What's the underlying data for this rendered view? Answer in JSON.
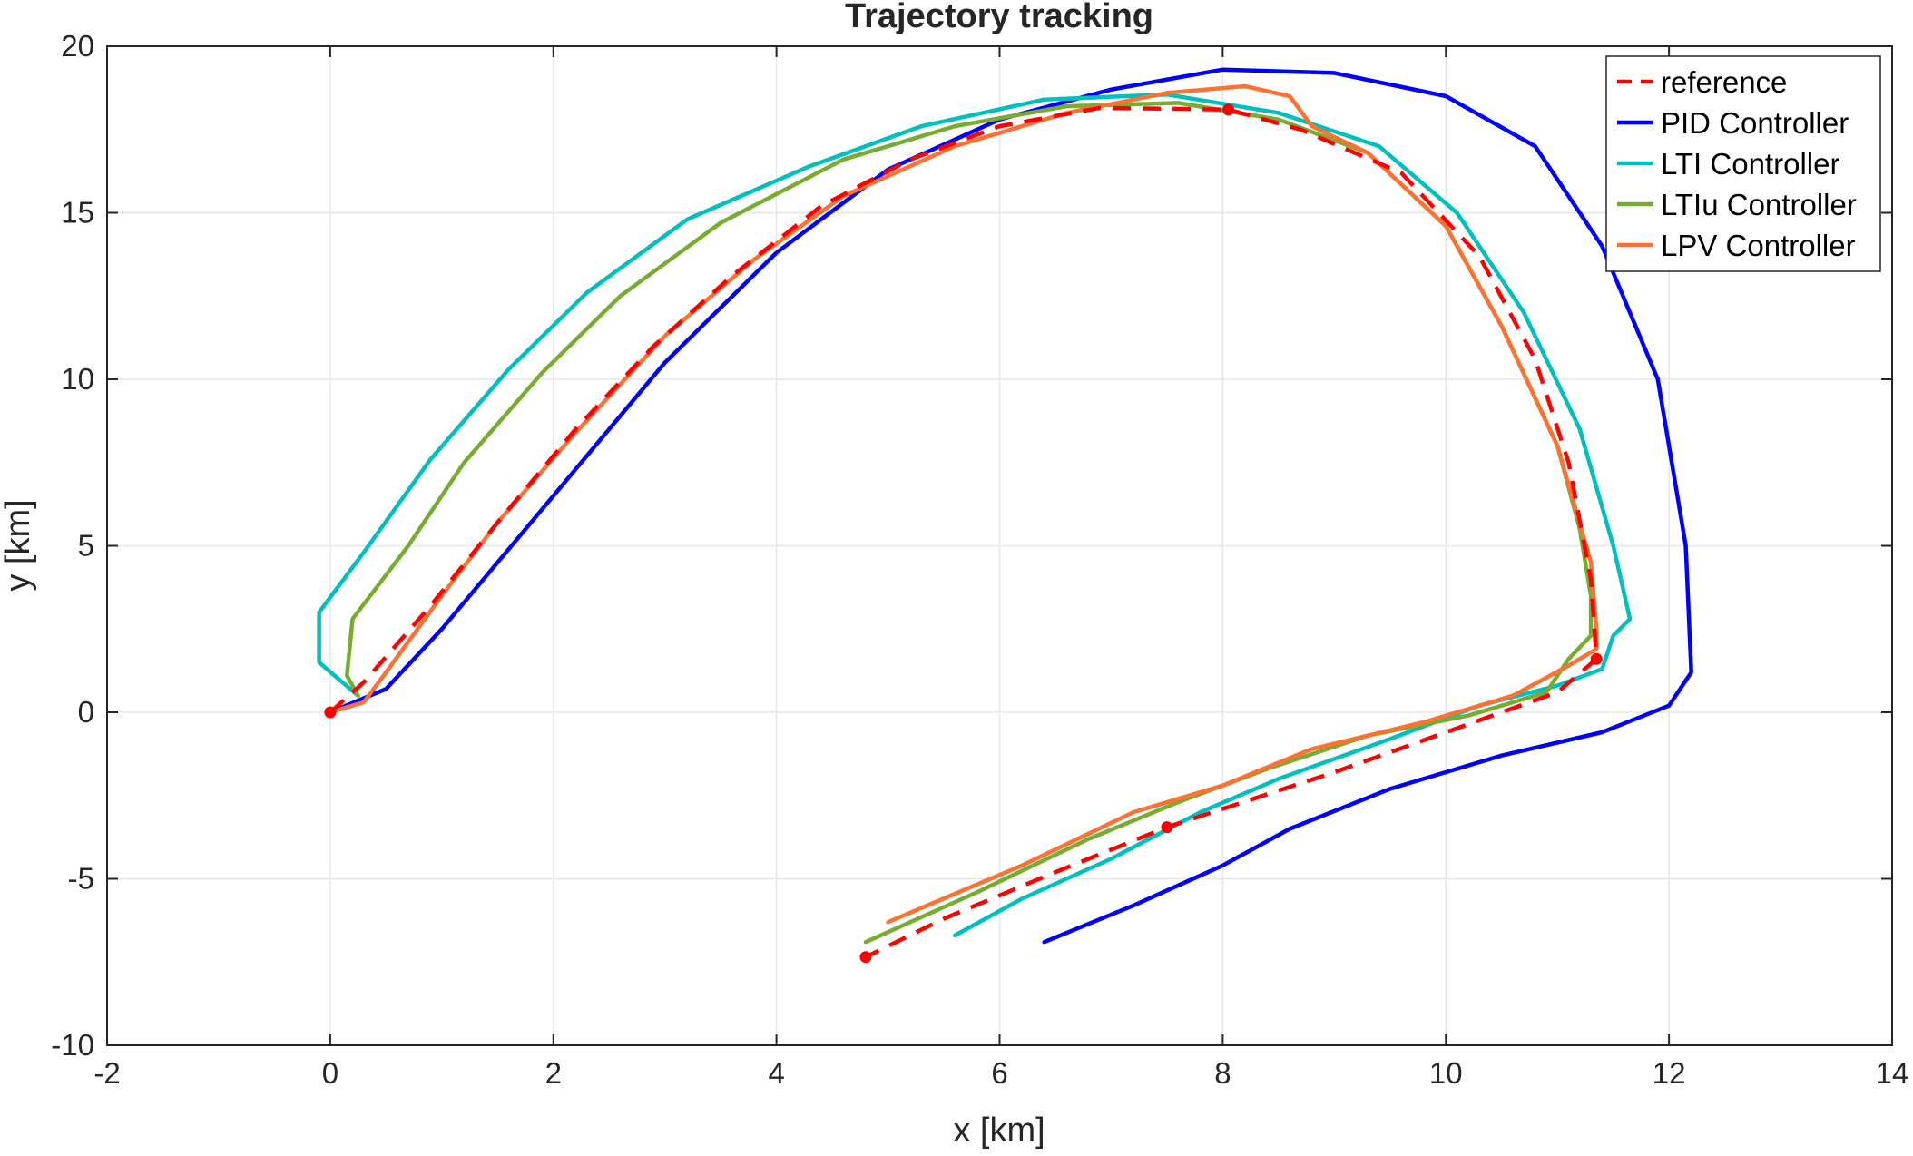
{
  "chart_data": {
    "type": "line",
    "title": "Trajectory tracking",
    "xlabel": "x [km]",
    "ylabel": "y [km]",
    "xlim": [
      -2,
      14
    ],
    "ylim": [
      -10,
      20
    ],
    "xticks": [
      -2,
      0,
      2,
      4,
      6,
      8,
      10,
      12,
      14
    ],
    "yticks": [
      -10,
      -5,
      0,
      5,
      10,
      15,
      20
    ],
    "grid": true,
    "legend_position": "top-right",
    "series": [
      {
        "name": "reference",
        "color": "#ff0000",
        "style": "dashed",
        "points": [
          [
            0,
            0
          ],
          [
            0.3,
            0.9
          ],
          [
            0.9,
            3.2
          ],
          [
            1.5,
            5.7
          ],
          [
            2.2,
            8.5
          ],
          [
            2.9,
            11
          ],
          [
            3.6,
            13.1
          ],
          [
            4.4,
            15.2
          ],
          [
            5.2,
            16.6
          ],
          [
            6.0,
            17.6
          ],
          [
            6.9,
            18.15
          ],
          [
            8.05,
            18.1
          ],
          [
            8.7,
            17.5
          ],
          [
            9.6,
            16.2
          ],
          [
            10.3,
            13.7
          ],
          [
            10.8,
            10.6
          ],
          [
            11.1,
            7.5
          ],
          [
            11.3,
            4.0
          ],
          [
            11.35,
            1.6
          ],
          [
            11.0,
            0.6
          ],
          [
            10.0,
            -0.6
          ],
          [
            9.0,
            -1.8
          ],
          [
            8.0,
            -2.9
          ],
          [
            7.5,
            -3.45
          ],
          [
            6.5,
            -4.8
          ],
          [
            5.5,
            -6.2
          ],
          [
            4.8,
            -7.35
          ]
        ]
      },
      {
        "name": "PID Controller",
        "color": "#0000ff",
        "style": "solid",
        "points": [
          [
            0,
            0
          ],
          [
            0.5,
            0.7
          ],
          [
            1.0,
            2.5
          ],
          [
            2.0,
            6.5
          ],
          [
            3.0,
            10.5
          ],
          [
            4.0,
            13.8
          ],
          [
            5.0,
            16.3
          ],
          [
            6.0,
            17.8
          ],
          [
            7.0,
            18.7
          ],
          [
            8.0,
            19.3
          ],
          [
            9.0,
            19.2
          ],
          [
            10.0,
            18.5
          ],
          [
            10.8,
            17.0
          ],
          [
            11.4,
            14.0
          ],
          [
            11.9,
            10.0
          ],
          [
            12.15,
            5.0
          ],
          [
            12.2,
            1.2
          ],
          [
            12.0,
            0.2
          ],
          [
            11.4,
            -0.6
          ],
          [
            10.5,
            -1.3
          ],
          [
            9.5,
            -2.3
          ],
          [
            8.6,
            -3.5
          ],
          [
            8.0,
            -4.6
          ],
          [
            7.2,
            -5.8
          ],
          [
            6.4,
            -6.9
          ]
        ]
      },
      {
        "name": "LTI Controller",
        "color": "#00bfbf",
        "style": "solid",
        "points": [
          [
            0.25,
            0.5
          ],
          [
            -0.1,
            1.5
          ],
          [
            -0.1,
            3.0
          ],
          [
            0.3,
            4.8
          ],
          [
            0.9,
            7.6
          ],
          [
            1.6,
            10.3
          ],
          [
            2.3,
            12.6
          ],
          [
            3.2,
            14.8
          ],
          [
            4.3,
            16.4
          ],
          [
            5.3,
            17.6
          ],
          [
            6.4,
            18.4
          ],
          [
            7.5,
            18.55
          ],
          [
            8.5,
            18.0
          ],
          [
            9.4,
            17.0
          ],
          [
            10.1,
            15.0
          ],
          [
            10.7,
            12.0
          ],
          [
            11.2,
            8.5
          ],
          [
            11.5,
            5.0
          ],
          [
            11.65,
            2.8
          ],
          [
            11.5,
            2.3
          ],
          [
            11.4,
            1.3
          ],
          [
            11.0,
            0.8
          ],
          [
            10.3,
            0.2
          ],
          [
            9.5,
            -0.8
          ],
          [
            8.5,
            -2.0
          ],
          [
            7.8,
            -3.0
          ],
          [
            7.0,
            -4.4
          ],
          [
            6.2,
            -5.6
          ],
          [
            5.6,
            -6.7
          ]
        ]
      },
      {
        "name": "LTIu Controller",
        "color": "#77ac30",
        "style": "solid",
        "points": [
          [
            0.25,
            0.5
          ],
          [
            0.15,
            1.1
          ],
          [
            0.2,
            2.8
          ],
          [
            0.7,
            5.0
          ],
          [
            1.2,
            7.5
          ],
          [
            1.9,
            10.2
          ],
          [
            2.6,
            12.5
          ],
          [
            3.5,
            14.7
          ],
          [
            4.6,
            16.6
          ],
          [
            5.6,
            17.6
          ],
          [
            6.6,
            18.2
          ],
          [
            7.6,
            18.3
          ],
          [
            8.5,
            17.8
          ],
          [
            9.3,
            16.8
          ],
          [
            10.0,
            14.6
          ],
          [
            10.5,
            11.6
          ],
          [
            11.0,
            8.0
          ],
          [
            11.2,
            5.5
          ],
          [
            11.3,
            3.5
          ],
          [
            11.3,
            2.3
          ],
          [
            11.1,
            1.6
          ],
          [
            10.9,
            0.6
          ],
          [
            10.2,
            -0.1
          ],
          [
            9.3,
            -0.7
          ],
          [
            8.4,
            -1.7
          ],
          [
            7.6,
            -2.7
          ],
          [
            6.8,
            -3.8
          ],
          [
            5.8,
            -5.4
          ],
          [
            4.8,
            -6.9
          ]
        ]
      },
      {
        "name": "LPV Controller",
        "color": "#ff7033",
        "style": "solid",
        "points": [
          [
            0,
            0
          ],
          [
            0.3,
            0.3
          ],
          [
            0.5,
            1.2
          ],
          [
            1.0,
            3.5
          ],
          [
            1.5,
            5.7
          ],
          [
            2.2,
            8.4
          ],
          [
            3.0,
            11.3
          ],
          [
            3.8,
            13.6
          ],
          [
            4.6,
            15.5
          ],
          [
            5.6,
            17.0
          ],
          [
            6.6,
            18.0
          ],
          [
            7.5,
            18.6
          ],
          [
            8.2,
            18.8
          ],
          [
            8.6,
            18.5
          ],
          [
            8.8,
            17.6
          ],
          [
            9.3,
            16.8
          ],
          [
            10.0,
            14.6
          ],
          [
            10.5,
            11.6
          ],
          [
            11.0,
            8.0
          ],
          [
            11.3,
            4.5
          ],
          [
            11.35,
            2.5
          ],
          [
            11.35,
            1.9
          ],
          [
            11.1,
            1.4
          ],
          [
            10.6,
            0.5
          ],
          [
            9.8,
            -0.3
          ],
          [
            8.8,
            -1.1
          ],
          [
            8.0,
            -2.2
          ],
          [
            7.2,
            -3.0
          ],
          [
            6.2,
            -4.6
          ],
          [
            5.0,
            -6.3
          ]
        ]
      }
    ],
    "markers": [
      {
        "x": 0,
        "y": 0
      },
      {
        "x": 8.05,
        "y": 18.1
      },
      {
        "x": 11.35,
        "y": 1.6
      },
      {
        "x": 7.5,
        "y": -3.45
      },
      {
        "x": 4.8,
        "y": -7.35
      }
    ]
  }
}
